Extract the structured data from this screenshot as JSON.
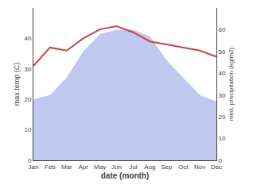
{
  "chart_data": {
    "type": "line",
    "categories": [
      "Jan",
      "Feb",
      "Mar",
      "Apr",
      "May",
      "Jun",
      "Jul",
      "Aug",
      "Sep",
      "Oct",
      "Nov",
      "Dec"
    ],
    "xlabel": "date (month)",
    "ylabel": "max temp (C)",
    "y2label": "med. precipitation (kg/m2)",
    "series": [
      {
        "type": "area",
        "axis": "y2",
        "color": "#c0c8ef",
        "values": [
          28,
          30,
          38,
          50,
          58,
          60,
          60,
          57,
          46,
          38,
          30,
          27
        ]
      },
      {
        "type": "line",
        "color": "#cc4444",
        "values": [
          31,
          37,
          36,
          40,
          43,
          44,
          42,
          39,
          38,
          37,
          36,
          34
        ]
      }
    ],
    "ylim": [
      0,
      50
    ],
    "yticks": [
      0,
      10,
      20,
      30,
      40
    ],
    "y2lim": [
      0,
      70
    ],
    "y2ticks": [
      0,
      10,
      20,
      30,
      40,
      50,
      60
    ],
    "grid": false
  }
}
